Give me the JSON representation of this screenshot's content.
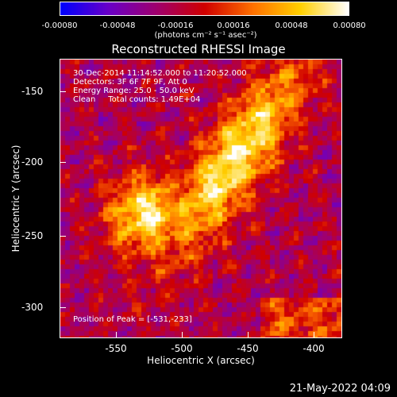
{
  "colorbar": {
    "ticks": [
      "-0.00080",
      "-0.00048",
      "-0.00016",
      "0.00016",
      "0.00048",
      "0.00080"
    ],
    "units": "(photons cm⁻² s⁻¹ asec⁻²)",
    "colors": [
      "#0000ff",
      "#6a00c8",
      "#a0006e",
      "#d00000",
      "#ff7000",
      "#ffd000",
      "#ffffff"
    ]
  },
  "title": "Reconstructed RHESSI Image",
  "info": {
    "time": "30-Dec-2014 11:14:52.000 to 11:20:52.000",
    "detectors": "Detectors: 3F 6F 7F 9F, Att 0",
    "energy": "Energy Range: 25.0 - 50.0 keV",
    "method": "Clean     Total counts: 1.49E+04"
  },
  "peak": "Position of Peak = [-531,-233]",
  "axes": {
    "xlabel": "Heliocentric X (arcsec)",
    "ylabel": "Heliocentric Y (arcsec)",
    "xticks": [
      "-550",
      "-500",
      "-450",
      "-400"
    ],
    "yticks": [
      "-150",
      "-200",
      "-250",
      "-300"
    ]
  },
  "timestamp": "21-May-2022 04:09"
}
